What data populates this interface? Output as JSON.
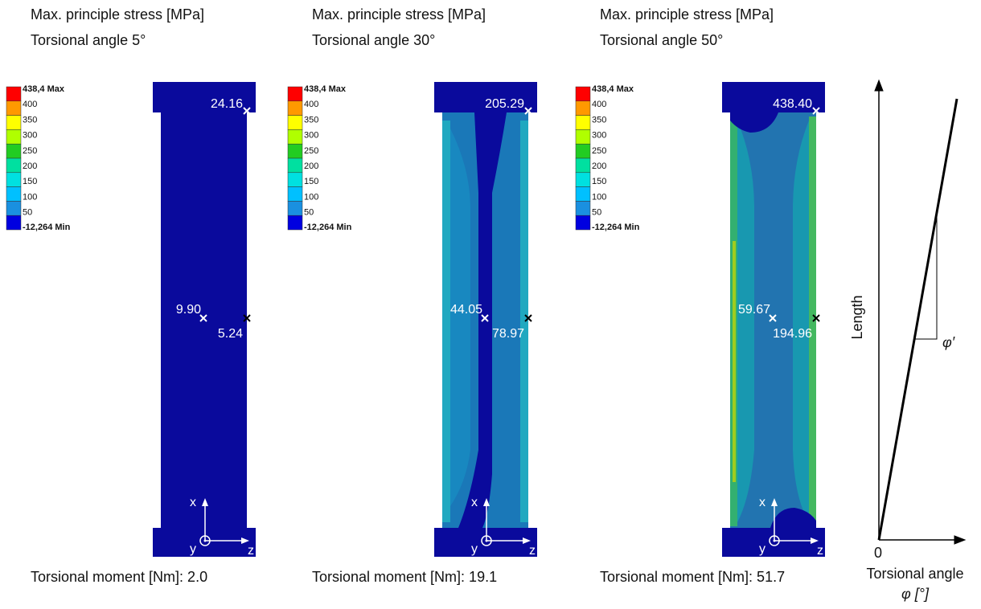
{
  "panels": [
    {
      "title": "Max. principle stress [MPa]",
      "subtitle": "Torsional angle 5°",
      "legend": [
        "438,4 Max",
        "400",
        "350",
        "300",
        "250",
        "200",
        "150",
        "100",
        "50",
        "-12,264 Min"
      ],
      "top_value": "24.16",
      "center_value": "9.90",
      "edge_value": "5.24",
      "moment": "Torsional moment [Nm]: 2.0"
    },
    {
      "title": "Max. principle stress [MPa]",
      "subtitle": "Torsional angle 30°",
      "legend": [
        "438,4 Max",
        "400",
        "350",
        "300",
        "250",
        "200",
        "150",
        "100",
        "50",
        "-12,264 Min"
      ],
      "top_value": "205.29",
      "center_value": "44.05",
      "edge_value": "78.97",
      "moment": "Torsional moment [Nm]: 19.1"
    },
    {
      "title": "Max. principle stress [MPa]",
      "subtitle": "Torsional angle 50°",
      "legend": [
        "438,4 Max",
        "400",
        "350",
        "300",
        "250",
        "200",
        "150",
        "100",
        "50",
        "-12,264 Min"
      ],
      "top_value": "438.40",
      "center_value": "59.67",
      "edge_value": "194.96",
      "moment": "Torsional moment [Nm]: 51.7"
    }
  ],
  "coordinate_labels": [
    "x",
    "y",
    "z"
  ],
  "schematic": {
    "y_label": "Length",
    "origin": "0",
    "x_label": "Torsional angle",
    "x_unit": "φ [°]",
    "slope_label": "φ′"
  }
}
